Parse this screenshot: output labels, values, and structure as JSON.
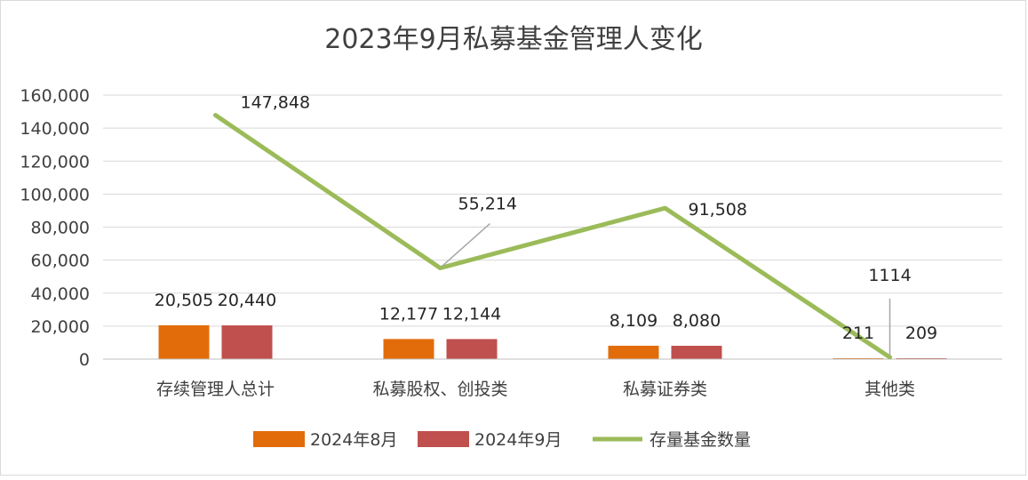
{
  "chart_data": {
    "type": "bar",
    "title": "2023年9月私募基金管理人变化",
    "categories": [
      "存续管理人总计",
      "私募股权、创投类",
      "私募证券类",
      "其他类"
    ],
    "ylim": [
      0,
      160000
    ],
    "yticks": [
      "0",
      "20,000",
      "40,000",
      "60,000",
      "80,000",
      "100,000",
      "120,000",
      "140,000",
      "160,000"
    ],
    "ytick_values": [
      0,
      20000,
      40000,
      60000,
      80000,
      100000,
      120000,
      140000,
      160000
    ],
    "grid": true,
    "legend_position": "bottom",
    "series": [
      {
        "name": "2024年8月",
        "kind": "bar",
        "color": "#E36C0A",
        "values": [
          20505,
          12177,
          8109,
          211
        ],
        "labels": [
          "20,505",
          "12,177",
          "8,109",
          "211"
        ]
      },
      {
        "name": "2024年9月",
        "kind": "bar",
        "color": "#C0504D",
        "values": [
          20440,
          12144,
          8080,
          209
        ],
        "labels": [
          "20,440",
          "12,144",
          "8,080",
          "209"
        ]
      },
      {
        "name": "存量基金数量",
        "kind": "line",
        "color": "#9BBB59",
        "values": [
          147848,
          55214,
          91508,
          1114
        ],
        "labels": [
          "147,848",
          "55,214",
          "91,508",
          "1114"
        ]
      }
    ]
  }
}
